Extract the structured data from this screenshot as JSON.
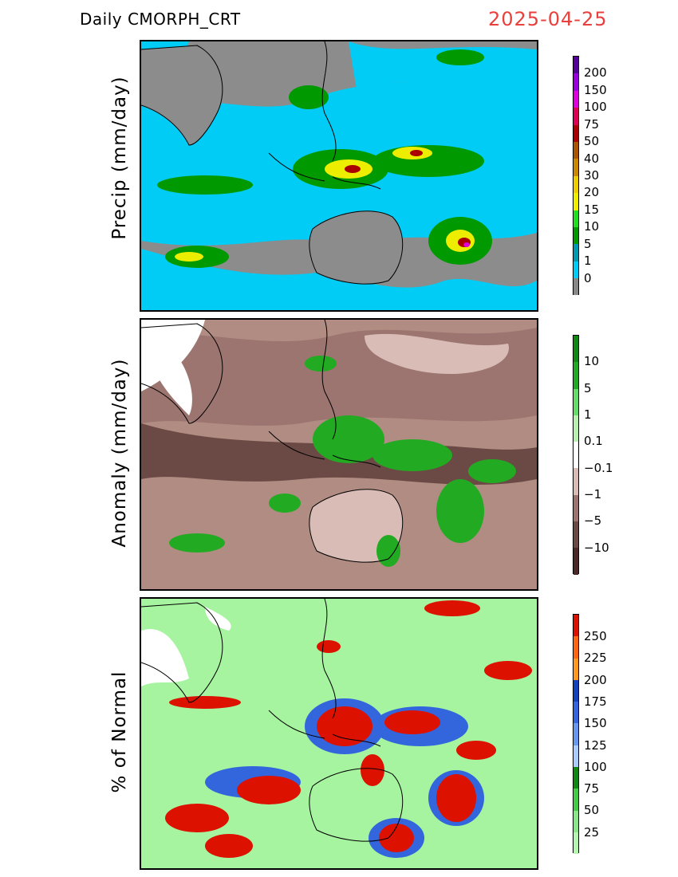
{
  "header": {
    "title": "Daily  CMORPH_CRT",
    "date": "2025-04-25"
  },
  "panels": [
    {
      "label": "Precip  (mm/day)",
      "background": "#8c8c8c",
      "colorbar": {
        "colors": [
          "#888888",
          "#00ccf5",
          "#0099b3",
          "#009900",
          "#22dd22",
          "#eded00",
          "#edcc00",
          "#cc8800",
          "#aa5500",
          "#aa0000",
          "#dd0055",
          "#dd00dd",
          "#9900dd",
          "#550099"
        ],
        "labels": [
          "0",
          "1",
          "5",
          "10",
          "15",
          "20",
          "30",
          "40",
          "50",
          "75",
          "100",
          "150",
          "200"
        ]
      }
    },
    {
      "label": "Anomaly  (mm/day)",
      "background": "#b08c82",
      "colorbar": {
        "colors": [
          "#4a2a28",
          "#6b4a45",
          "#9c7570",
          "#d9bcb6",
          "#ffffff",
          "#b8f0b0",
          "#66dd66",
          "#22aa22",
          "#118811"
        ],
        "labels": [
          "−10",
          "−5",
          "−1",
          "−0.1",
          "0.1",
          "1",
          "5",
          "10"
        ]
      }
    },
    {
      "label": "% of Normal",
      "background": "#a6f3a0",
      "colorbar": {
        "colors": [
          "#b4f5b0",
          "#88e888",
          "#44cc44",
          "#118811",
          "#aaccff",
          "#6699ee",
          "#3366dd",
          "#1144bb",
          "#ff9922",
          "#ff6611",
          "#dd1100"
        ],
        "labels": [
          "25",
          "50",
          "75",
          "100",
          "125",
          "150",
          "175",
          "200",
          "225",
          "250"
        ]
      }
    }
  ]
}
